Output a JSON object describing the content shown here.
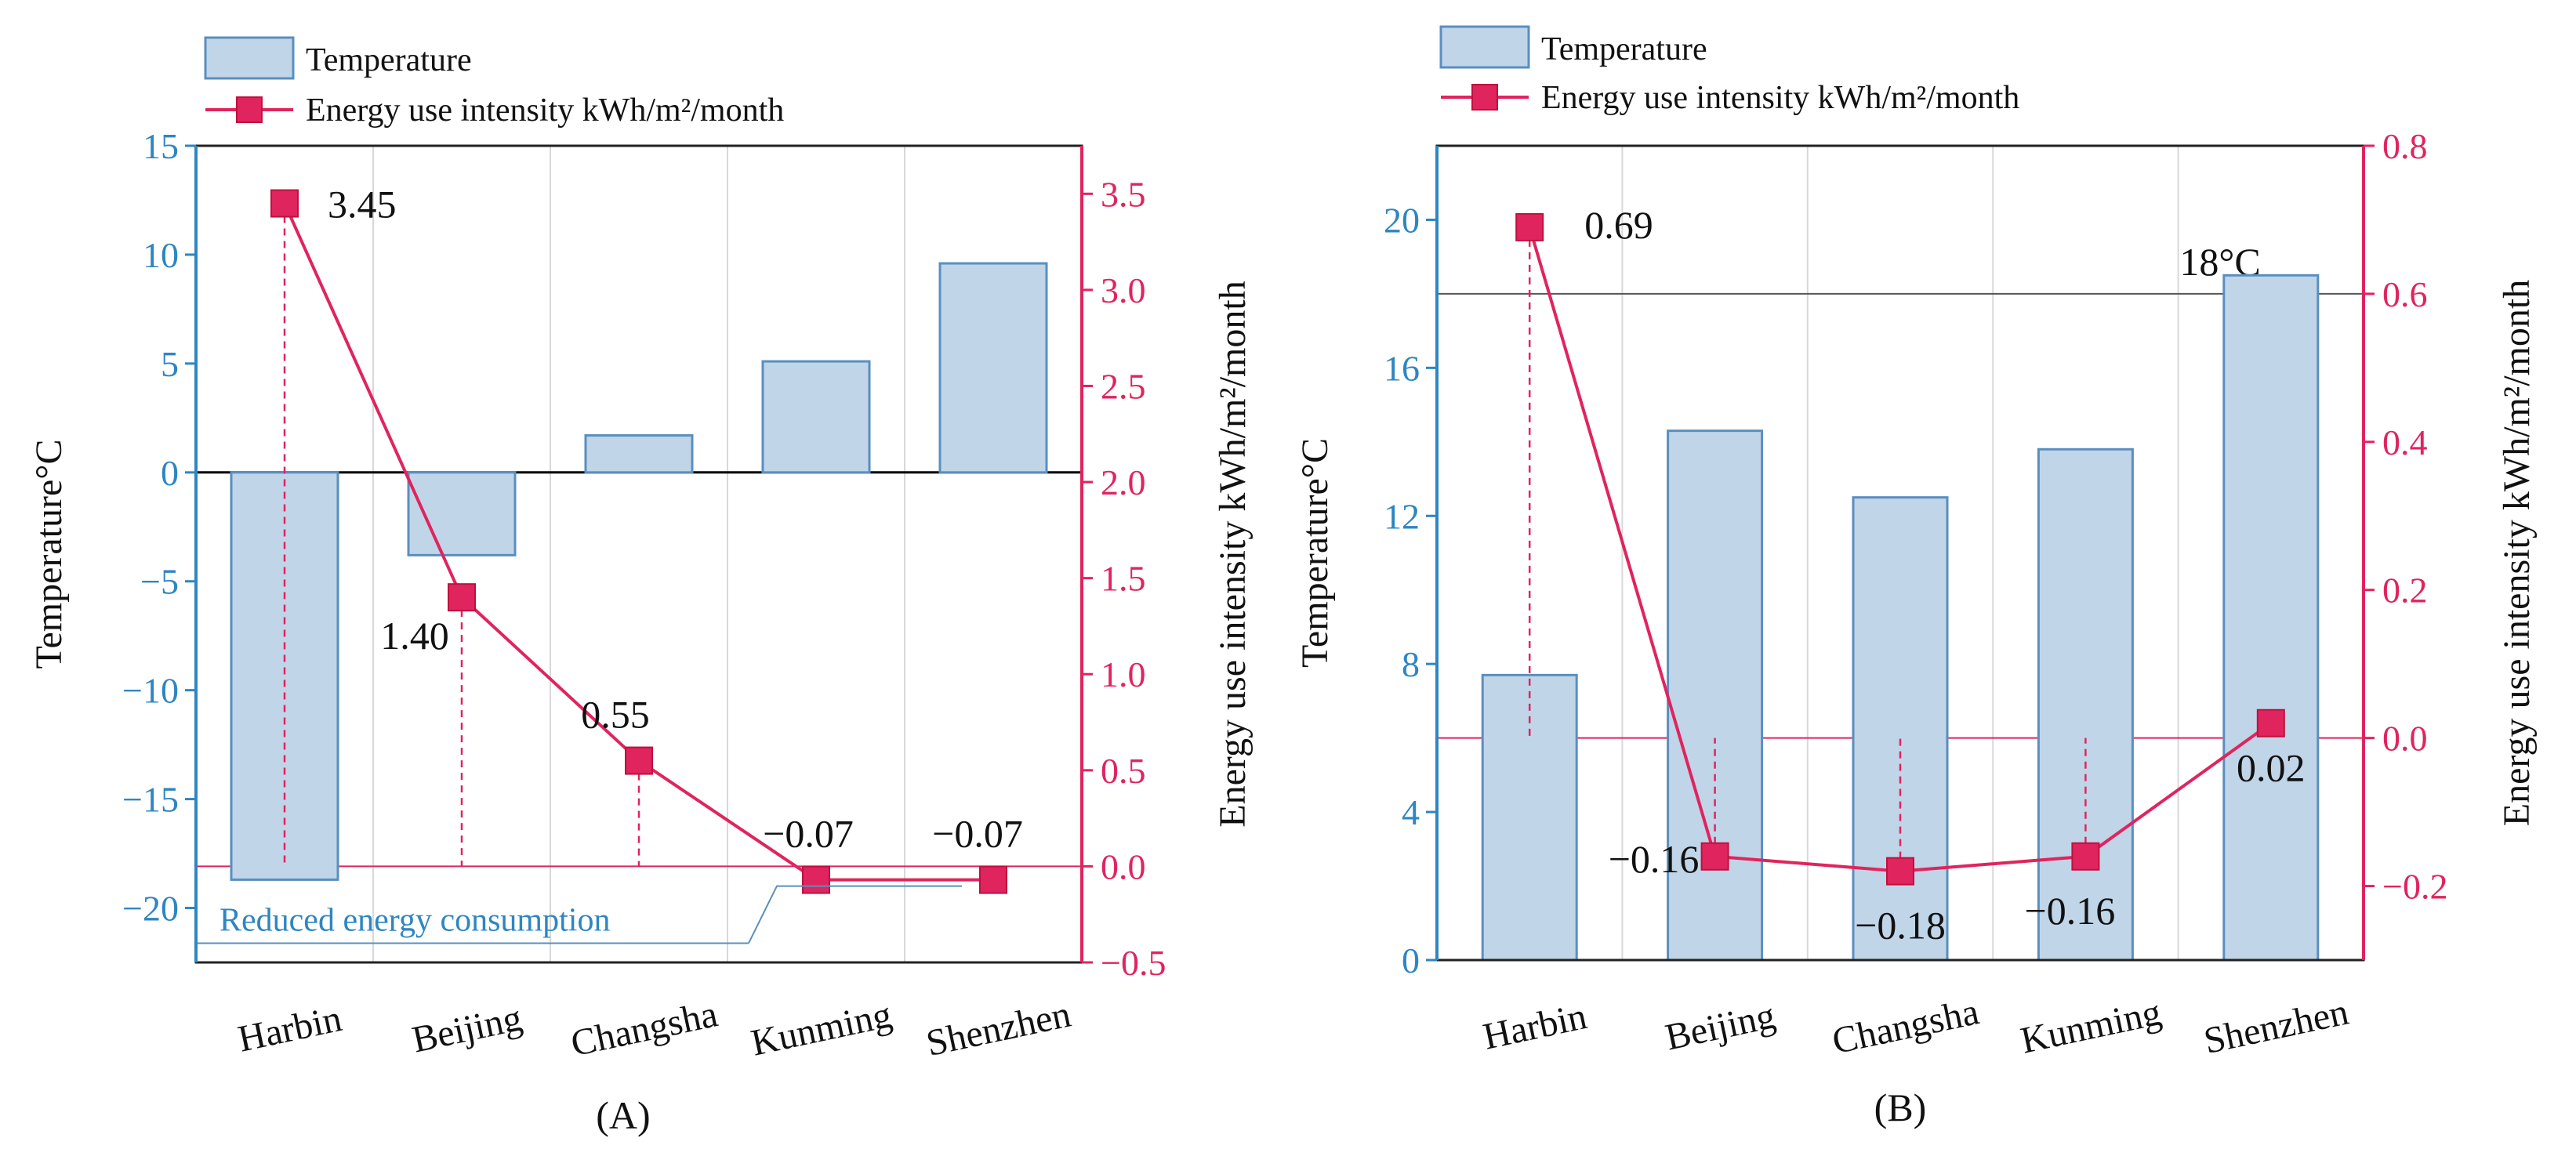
{
  "legend": {
    "temperature": "Temperature",
    "energy": "Energy use intensity kWh/m²/month"
  },
  "chart_data": [
    {
      "panel": "(A)",
      "type": "bar+line",
      "categories": [
        "Harbin",
        "Beijing",
        "Changsha",
        "Kunming",
        "Shenzhen"
      ],
      "series": [
        {
          "name": "Temperature",
          "axis": "left",
          "type": "bar",
          "values": [
            -18.7,
            -3.8,
            1.7,
            5.1,
            9.6
          ]
        },
        {
          "name": "Energy use intensity kWh/m²/month",
          "axis": "right",
          "type": "line",
          "values": [
            3.45,
            1.4,
            0.55,
            -0.07,
            -0.07
          ]
        }
      ],
      "data_labels": [
        "3.45",
        "1.40",
        "0.55",
        "−0.07",
        "−0.07"
      ],
      "ylabel_left": "Temperature°C",
      "ylabel_right": "Energy use intensity kWh/m²/month",
      "ylim_left": [
        -22.5,
        15
      ],
      "ylim_right": [
        -0.5,
        3.75
      ],
      "yticks_left": [
        "15",
        "10",
        "5",
        "0",
        "−5",
        "−10",
        "−15",
        "−20"
      ],
      "ytick_values_left": [
        15,
        10,
        5,
        0,
        -5,
        -10,
        -15,
        -20
      ],
      "yticks_right": [
        "3.5",
        "3.0",
        "2.5",
        "2.0",
        "1.5",
        "1.0",
        "0.5",
        "0.0",
        "−0.5"
      ],
      "ytick_values_right": [
        3.5,
        3.0,
        2.5,
        2.0,
        1.5,
        1.0,
        0.5,
        0.0,
        -0.5
      ],
      "annotation": "Reduced energy consumption"
    },
    {
      "panel": "(B)",
      "type": "bar+line",
      "categories": [
        "Harbin",
        "Beijing",
        "Changsha",
        "Kunming",
        "Shenzhen"
      ],
      "series": [
        {
          "name": "Temperature",
          "axis": "left",
          "type": "bar",
          "values": [
            7.7,
            14.3,
            12.5,
            13.8,
            18.5
          ]
        },
        {
          "name": "Energy use intensity kWh/m²/month",
          "axis": "right",
          "type": "line",
          "values": [
            0.69,
            -0.16,
            -0.18,
            -0.16,
            0.02
          ]
        }
      ],
      "data_labels": [
        "0.69",
        "−0.16",
        "−0.18",
        "−0.16",
        "0.02"
      ],
      "ylabel_left": "Temperature°C",
      "ylabel_right": "Energy use intensity kWh/m²/month",
      "ylim_left": [
        0,
        22
      ],
      "ylim_right": [
        -0.3,
        0.8
      ],
      "yticks_left": [
        "20",
        "16",
        "12",
        "8",
        "4",
        "0"
      ],
      "ytick_values_left": [
        20,
        16,
        12,
        8,
        4,
        0
      ],
      "yticks_right": [
        "0.8",
        "0.6",
        "0.4",
        "0.2",
        "0.0",
        "−0.2"
      ],
      "ytick_values_right": [
        0.8,
        0.6,
        0.4,
        0.2,
        0.0,
        -0.2
      ],
      "reference_line": {
        "value": 18,
        "label": "18°C"
      }
    }
  ]
}
